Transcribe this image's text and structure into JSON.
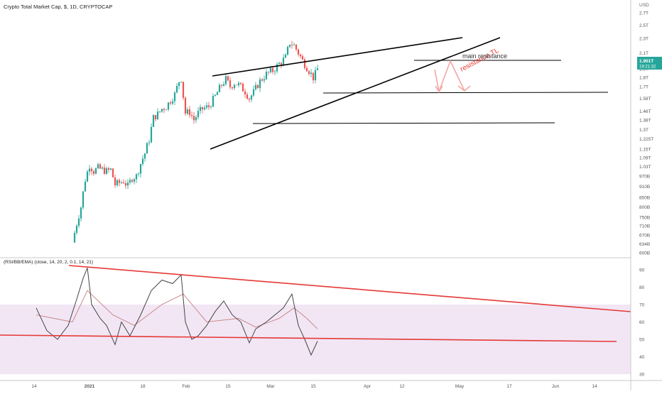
{
  "header": {
    "title": "Crypto Total Market Cap, $, 1D, CRYPTOCAP",
    "currency": "USD"
  },
  "price_badge": {
    "value": "1.901T",
    "countdown": "19:21:32",
    "color": "#26a69a"
  },
  "colors": {
    "up": "#26a69a",
    "down": "#ef5350",
    "trendline": "#000000",
    "annotation_red": "#e53935",
    "arrow": "#f4a6a6",
    "rsi_line": "#444444",
    "rsi_ema": "#c98a8a",
    "rsi_band": "#f2e6f5",
    "grid_text": "#555555"
  },
  "chart_data": [
    {
      "type": "candlestick",
      "title": "Crypto Total Market Cap, $, 1D, CRYPTOCAP",
      "y_scale": "log",
      "ylim": [
        600,
        2800
      ],
      "y_unit": "billion USD",
      "ytick_labels": [
        "2.7T",
        "2.5T",
        "2.3T",
        "2.1T",
        "1.9T",
        "1.8T",
        "1.7T",
        "1.58T",
        "1.46T",
        "1.38T",
        "1.3T",
        "1.225T",
        "1.15T",
        "1.09T",
        "1.03T",
        "970B",
        "910B",
        "850B",
        "800B",
        "750B",
        "710B",
        "670B",
        "634B",
        "600B"
      ],
      "ytick_values": [
        2700,
        2500,
        2300,
        2100,
        1900,
        1800,
        1700,
        1580,
        1460,
        1380,
        1300,
        1225,
        1150,
        1090,
        1030,
        970,
        910,
        850,
        800,
        750,
        710,
        670,
        634,
        600
      ],
      "x_labels": [
        "14",
        "2021",
        "18",
        "Feb",
        "15",
        "Mar",
        "15",
        "Apr",
        "12",
        "May",
        "17",
        "Jun",
        "14"
      ],
      "close_series": [
        {
          "date": "2021-01-01",
          "close": 640
        },
        {
          "date": "2021-01-03",
          "close": 720
        },
        {
          "date": "2021-01-05",
          "close": 800
        },
        {
          "date": "2021-01-07",
          "close": 950
        },
        {
          "date": "2021-01-09",
          "close": 1040
        },
        {
          "date": "2021-01-11",
          "close": 1000
        },
        {
          "date": "2021-01-13",
          "close": 1020
        },
        {
          "date": "2021-01-15",
          "close": 1010
        },
        {
          "date": "2021-01-17",
          "close": 1000
        },
        {
          "date": "2021-01-19",
          "close": 1010
        },
        {
          "date": "2021-01-21",
          "close": 920
        },
        {
          "date": "2021-01-23",
          "close": 930
        },
        {
          "date": "2021-01-25",
          "close": 940
        },
        {
          "date": "2021-01-27",
          "close": 910
        },
        {
          "date": "2021-01-29",
          "close": 960
        },
        {
          "date": "2021-01-31",
          "close": 970
        },
        {
          "date": "2021-02-02",
          "close": 1050
        },
        {
          "date": "2021-02-04",
          "close": 1120
        },
        {
          "date": "2021-02-06",
          "close": 1220
        },
        {
          "date": "2021-02-08",
          "close": 1400
        },
        {
          "date": "2021-02-10",
          "close": 1430
        },
        {
          "date": "2021-02-12",
          "close": 1480
        },
        {
          "date": "2021-02-14",
          "close": 1500
        },
        {
          "date": "2021-02-16",
          "close": 1560
        },
        {
          "date": "2021-02-18",
          "close": 1620
        },
        {
          "date": "2021-02-20",
          "close": 1760
        },
        {
          "date": "2021-02-21",
          "close": 1790
        },
        {
          "date": "2021-02-22",
          "close": 1600
        },
        {
          "date": "2021-02-23",
          "close": 1440
        },
        {
          "date": "2021-02-25",
          "close": 1450
        },
        {
          "date": "2021-02-27",
          "close": 1380
        },
        {
          "date": "2021-03-01",
          "close": 1440
        },
        {
          "date": "2021-03-03",
          "close": 1480
        },
        {
          "date": "2021-03-06",
          "close": 1500
        },
        {
          "date": "2021-03-09",
          "close": 1600
        },
        {
          "date": "2021-03-12",
          "close": 1720
        },
        {
          "date": "2021-03-14",
          "close": 1780
        },
        {
          "date": "2021-03-16",
          "close": 1700
        },
        {
          "date": "2021-03-18",
          "close": 1740
        },
        {
          "date": "2021-03-20",
          "close": 1720
        },
        {
          "date": "2021-03-23",
          "close": 1650
        },
        {
          "date": "2021-03-25",
          "close": 1580
        },
        {
          "date": "2021-03-27",
          "close": 1640
        },
        {
          "date": "2021-03-30",
          "close": 1760
        },
        {
          "date": "2021-04-02",
          "close": 1840
        },
        {
          "date": "2021-04-05",
          "close": 1880
        },
        {
          "date": "2021-04-08",
          "close": 1960
        },
        {
          "date": "2021-04-11",
          "close": 2040
        },
        {
          "date": "2021-04-13",
          "close": 2240
        },
        {
          "date": "2021-04-15",
          "close": 2200
        },
        {
          "date": "2021-04-17",
          "close": 2100
        },
        {
          "date": "2021-04-19",
          "close": 2000
        },
        {
          "date": "2021-04-20",
          "close": 1960
        },
        {
          "date": "2021-04-22",
          "close": 1880
        },
        {
          "date": "2021-04-24",
          "close": 1800
        },
        {
          "date": "2021-04-25",
          "close": 1840
        },
        {
          "date": "2021-04-26",
          "close": 1901
        }
      ],
      "annotations": [
        {
          "text": "resistance TL",
          "color": "#e53935"
        },
        {
          "text": "main resistance",
          "color": "#333333"
        }
      ],
      "horizontal_levels": [
        {
          "value": 1890,
          "label": "main resistance"
        },
        {
          "value": 1590
        },
        {
          "value": 1310
        }
      ],
      "legend": "none",
      "grid": false
    },
    {
      "type": "line",
      "title": "(RSI/BB/EMA) (close, 14, 20, 2, 0.1, 14, 21)",
      "ylim": [
        28,
        94
      ],
      "ytick_labels": [
        "90",
        "80",
        "70",
        "60",
        "50",
        "40",
        "30"
      ],
      "ytick_values": [
        90,
        80,
        70,
        60,
        50,
        40,
        30
      ],
      "band": [
        30,
        70
      ],
      "series": [
        {
          "role": "rsi",
          "points": [
            {
              "date": "2020-12-15",
              "value": 68
            },
            {
              "date": "2020-12-20",
              "value": 55
            },
            {
              "date": "2020-12-25",
              "value": 50
            },
            {
              "date": "2020-12-30",
              "value": 58
            },
            {
              "date": "2021-01-03",
              "value": 73
            },
            {
              "date": "2021-01-06",
              "value": 85
            },
            {
              "date": "2021-01-08",
              "value": 91
            },
            {
              "date": "2021-01-10",
              "value": 70
            },
            {
              "date": "2021-01-14",
              "value": 62
            },
            {
              "date": "2021-01-17",
              "value": 58
            },
            {
              "date": "2021-01-21",
              "value": 47
            },
            {
              "date": "2021-01-24",
              "value": 60
            },
            {
              "date": "2021-01-28",
              "value": 52
            },
            {
              "date": "2021-02-02",
              "value": 64
            },
            {
              "date": "2021-02-07",
              "value": 78
            },
            {
              "date": "2021-02-12",
              "value": 84
            },
            {
              "date": "2021-02-17",
              "value": 82
            },
            {
              "date": "2021-02-21",
              "value": 87
            },
            {
              "date": "2021-02-23",
              "value": 60
            },
            {
              "date": "2021-02-26",
              "value": 50
            },
            {
              "date": "2021-03-01",
              "value": 52
            },
            {
              "date": "2021-03-05",
              "value": 58
            },
            {
              "date": "2021-03-09",
              "value": 66
            },
            {
              "date": "2021-03-13",
              "value": 72
            },
            {
              "date": "2021-03-17",
              "value": 64
            },
            {
              "date": "2021-03-21",
              "value": 60
            },
            {
              "date": "2021-03-25",
              "value": 48
            },
            {
              "date": "2021-03-28",
              "value": 56
            },
            {
              "date": "2021-04-02",
              "value": 60
            },
            {
              "date": "2021-04-06",
              "value": 64
            },
            {
              "date": "2021-04-10",
              "value": 68
            },
            {
              "date": "2021-04-14",
              "value": 76
            },
            {
              "date": "2021-04-17",
              "value": 58
            },
            {
              "date": "2021-04-20",
              "value": 50
            },
            {
              "date": "2021-04-23",
              "value": 41
            },
            {
              "date": "2021-04-26",
              "value": 49
            }
          ]
        },
        {
          "role": "ema",
          "points": [
            {
              "date": "2020-12-15",
              "value": 64
            },
            {
              "date": "2021-01-01",
              "value": 60
            },
            {
              "date": "2021-01-08",
              "value": 78
            },
            {
              "date": "2021-01-20",
              "value": 64
            },
            {
              "date": "2021-01-30",
              "value": 58
            },
            {
              "date": "2021-02-12",
              "value": 70
            },
            {
              "date": "2021-02-22",
              "value": 76
            },
            {
              "date": "2021-03-05",
              "value": 60
            },
            {
              "date": "2021-03-20",
              "value": 62
            },
            {
              "date": "2021-03-28",
              "value": 57
            },
            {
              "date": "2021-04-08",
              "value": 62
            },
            {
              "date": "2021-04-15",
              "value": 68
            },
            {
              "date": "2021-04-21",
              "value": 62
            },
            {
              "date": "2021-04-26",
              "value": 56
            }
          ]
        }
      ],
      "legend": "none",
      "grid": false
    }
  ]
}
